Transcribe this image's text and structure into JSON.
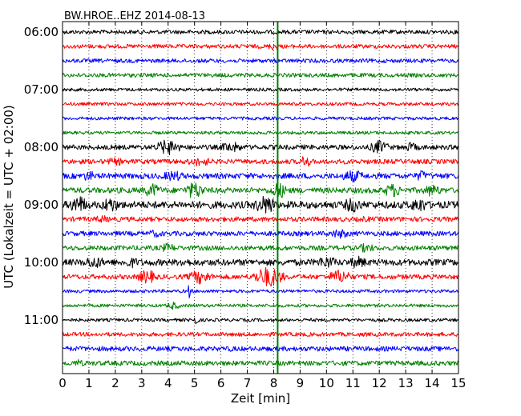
{
  "chart_data": {
    "type": "line",
    "title": "BW.HROE..EHZ 2014-08-13",
    "xlabel": "Zeit  [min]",
    "ylabel": "UTC (Lokalzeit = UTC + 02:00)",
    "xlim": [
      0,
      15
    ],
    "x_ticks": [
      0,
      1,
      2,
      3,
      4,
      5,
      6,
      7,
      8,
      9,
      10,
      11,
      12,
      13,
      14,
      15
    ],
    "x_tick_labels": [
      "0",
      "1",
      "2",
      "3",
      "4",
      "5",
      "6",
      "7",
      "8",
      "9",
      "10",
      "11",
      "12",
      "13",
      "14",
      "15"
    ],
    "y_tick_labels": [
      "06:00",
      "07:00",
      "08:00",
      "09:00",
      "10:00",
      "11:00"
    ],
    "line_start": "06:00",
    "line_interval_min": 15,
    "grid": "vertical dotted",
    "marker_line": {
      "x_min": 8.15,
      "color": "#008000"
    },
    "trace_colors": [
      "#000000",
      "#ff0000",
      "#0000ff",
      "#008000"
    ],
    "traces": [
      {
        "label": "06:00",
        "color": "#000000",
        "amplitude": 2.5,
        "bursts": []
      },
      {
        "label": "06:15",
        "color": "#ff0000",
        "amplitude": 2.5,
        "bursts": [
          [
            8.0,
            0.3,
            5
          ]
        ]
      },
      {
        "label": "06:30",
        "color": "#0000ff",
        "amplitude": 2.5,
        "bursts": []
      },
      {
        "label": "06:45",
        "color": "#008000",
        "amplitude": 2.5,
        "bursts": []
      },
      {
        "label": "07:00",
        "color": "#000000",
        "amplitude": 2.0,
        "bursts": []
      },
      {
        "label": "07:15",
        "color": "#ff0000",
        "amplitude": 2.0,
        "bursts": []
      },
      {
        "label": "07:30",
        "color": "#0000ff",
        "amplitude": 2.0,
        "bursts": []
      },
      {
        "label": "07:45",
        "color": "#008000",
        "amplitude": 2.0,
        "bursts": []
      },
      {
        "label": "08:00",
        "color": "#000000",
        "amplitude": 3.0,
        "bursts": [
          [
            4.0,
            0.5,
            10
          ],
          [
            6.4,
            0.5,
            7
          ],
          [
            12.0,
            0.4,
            9
          ],
          [
            13.2,
            0.4,
            6
          ]
        ]
      },
      {
        "label": "08:15",
        "color": "#ff0000",
        "amplitude": 3.0,
        "bursts": [
          [
            2.0,
            0.5,
            5
          ],
          [
            5.2,
            0.6,
            6
          ],
          [
            9.2,
            0.2,
            9
          ]
        ]
      },
      {
        "label": "08:30",
        "color": "#0000ff",
        "amplitude": 3.5,
        "bursts": [
          [
            1.0,
            0.3,
            7
          ],
          [
            4.2,
            0.5,
            7
          ],
          [
            11.0,
            0.5,
            8
          ],
          [
            13.6,
            0.3,
            7
          ]
        ]
      },
      {
        "label": "08:45",
        "color": "#008000",
        "amplitude": 3.5,
        "bursts": [
          [
            3.4,
            0.4,
            9
          ],
          [
            5.0,
            0.4,
            11
          ],
          [
            8.2,
            0.4,
            10
          ],
          [
            12.5,
            0.4,
            9
          ],
          [
            14.0,
            0.4,
            8
          ]
        ]
      },
      {
        "label": "09:00",
        "color": "#000000",
        "amplitude": 4.5,
        "bursts": [
          [
            0.6,
            0.4,
            12
          ],
          [
            1.8,
            0.4,
            10
          ],
          [
            7.7,
            0.5,
            12
          ],
          [
            11.0,
            0.4,
            10
          ],
          [
            13.5,
            0.4,
            10
          ]
        ]
      },
      {
        "label": "09:15",
        "color": "#ff0000",
        "amplitude": 3.0,
        "bursts": [
          [
            1.5,
            0.4,
            5
          ],
          [
            11.5,
            0.4,
            4
          ]
        ]
      },
      {
        "label": "09:30",
        "color": "#0000ff",
        "amplitude": 3.0,
        "bursts": [
          [
            3.5,
            0.4,
            5
          ],
          [
            10.5,
            0.5,
            6
          ]
        ]
      },
      {
        "label": "09:45",
        "color": "#008000",
        "amplitude": 3.0,
        "bursts": [
          [
            4.0,
            0.4,
            6
          ],
          [
            11.5,
            0.4,
            6
          ]
        ]
      },
      {
        "label": "10:00",
        "color": "#000000",
        "amplitude": 4.0,
        "bursts": [
          [
            1.2,
            0.5,
            8
          ],
          [
            2.6,
            0.4,
            7
          ],
          [
            4.6,
            0.4,
            6
          ],
          [
            10.0,
            0.5,
            8
          ],
          [
            11.2,
            0.4,
            8
          ]
        ]
      },
      {
        "label": "10:15",
        "color": "#ff0000",
        "amplitude": 3.0,
        "bursts": [
          [
            3.2,
            0.4,
            9
          ],
          [
            5.2,
            0.5,
            9
          ],
          [
            7.8,
            0.6,
            13
          ],
          [
            10.5,
            0.5,
            9
          ]
        ]
      },
      {
        "label": "10:30",
        "color": "#0000ff",
        "amplitude": 2.0,
        "bursts": [
          [
            4.8,
            0.1,
            9
          ]
        ]
      },
      {
        "label": "10:45",
        "color": "#008000",
        "amplitude": 2.0,
        "bursts": [
          [
            4.2,
            0.3,
            5
          ]
        ]
      },
      {
        "label": "11:00",
        "color": "#000000",
        "amplitude": 2.0,
        "bursts": [
          [
            5.0,
            0.2,
            6
          ]
        ]
      },
      {
        "label": "11:15",
        "color": "#ff0000",
        "amplitude": 2.5,
        "bursts": [
          [
            14.5,
            0.3,
            3
          ]
        ]
      },
      {
        "label": "11:30",
        "color": "#0000ff",
        "amplitude": 3.0,
        "bursts": [
          [
            6.4,
            0.2,
            4
          ]
        ]
      },
      {
        "label": "11:45",
        "color": "#008000",
        "amplitude": 3.0,
        "bursts": [
          [
            0.6,
            0.3,
            5
          ]
        ]
      }
    ]
  }
}
